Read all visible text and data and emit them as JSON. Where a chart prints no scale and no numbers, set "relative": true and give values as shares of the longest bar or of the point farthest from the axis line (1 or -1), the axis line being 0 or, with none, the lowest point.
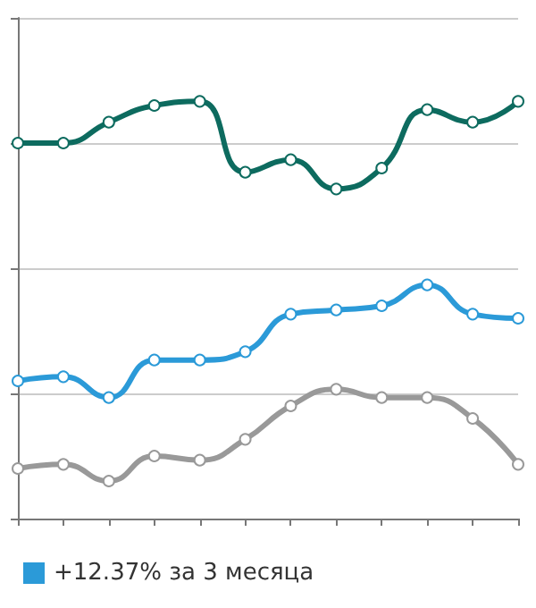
{
  "chart_data": {
    "type": "line",
    "relative": true,
    "categories": [
      null,
      null,
      null,
      null,
      null,
      null,
      null,
      null,
      null,
      null,
      null,
      null
    ],
    "series": [
      {
        "color": "#0d6b5f",
        "values": [
          0.9,
          0.9,
          0.95,
          0.99,
          1.0,
          0.83,
          0.86,
          0.79,
          0.84,
          0.98,
          0.95,
          1.0
        ]
      },
      {
        "name": "+12.37% за 3 месяца",
        "color": "#2b9ad8",
        "values": [
          0.33,
          0.34,
          0.29,
          0.38,
          0.38,
          0.4,
          0.49,
          0.5,
          0.51,
          0.56,
          0.49,
          0.48
        ]
      },
      {
        "color": "#999999",
        "values": [
          0.12,
          0.13,
          0.09,
          0.15,
          0.14,
          0.19,
          0.27,
          0.31,
          0.29,
          0.29,
          0.24,
          0.13
        ]
      }
    ],
    "grid": "y",
    "legend": "bottom left",
    "marker": "circle",
    "line_style": "solid"
  }
}
